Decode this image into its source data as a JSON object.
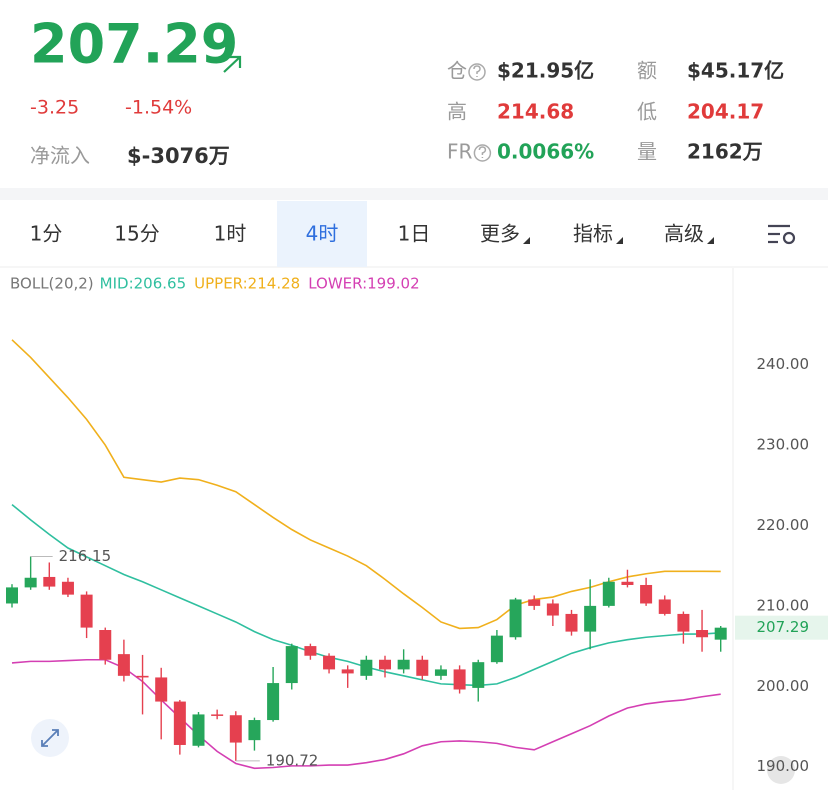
{
  "header": {
    "price": "207.29",
    "change": "-3.25",
    "change_pct": "-1.54%",
    "net_inflow_label": "净流入",
    "net_inflow": "$-3076万"
  },
  "stats": [
    {
      "label": "仓",
      "help": true,
      "value": "$21.95亿",
      "tone": "dark"
    },
    {
      "label": "额",
      "help": false,
      "value": "$45.17亿",
      "tone": "dark"
    },
    {
      "label": "高",
      "help": false,
      "value": "214.68",
      "tone": "red"
    },
    {
      "label": "低",
      "help": false,
      "value": "204.17",
      "tone": "red"
    },
    {
      "label": "FR",
      "help": true,
      "value": "0.0066%",
      "tone": "green"
    },
    {
      "label": "量",
      "help": false,
      "value": "2162万",
      "tone": "dark"
    }
  ],
  "tabs": {
    "items": [
      {
        "label": "1分",
        "dropdown": false
      },
      {
        "label": "15分",
        "dropdown": false
      },
      {
        "label": "1时",
        "dropdown": false
      },
      {
        "label": "4时",
        "dropdown": false
      },
      {
        "label": "1日",
        "dropdown": false
      },
      {
        "label": "更多",
        "dropdown": true
      },
      {
        "label": "指标",
        "dropdown": true
      },
      {
        "label": "高级",
        "dropdown": true
      }
    ],
    "active": 3
  },
  "chart_data": {
    "type": "candlestick",
    "legend_title": "BOLL(20,2)",
    "categories": [
      null,
      null,
      null,
      null,
      null,
      null,
      null,
      null,
      null,
      null,
      null,
      null,
      null,
      null,
      null,
      null,
      null,
      null,
      null,
      null,
      null,
      null,
      null,
      null,
      null,
      null,
      null,
      null,
      null,
      null,
      null,
      null,
      null,
      null,
      null,
      null,
      null,
      null,
      null
    ],
    "open": [
      210.3,
      212.3,
      213.6,
      213.0,
      211.4,
      207.0,
      204.0,
      201.3,
      201.1,
      198.1,
      192.6,
      196.5,
      196.4,
      193.3,
      195.8,
      200.4,
      205.0,
      203.8,
      202.1,
      201.3,
      203.3,
      202.1,
      203.3,
      201.3,
      202.1,
      199.8,
      203.0,
      206.1,
      210.8,
      210.3,
      209.0,
      206.8,
      210.0,
      213.0,
      212.6,
      210.8,
      209.0,
      207.0,
      205.8
    ],
    "high": [
      212.7,
      216.15,
      215.4,
      213.5,
      211.8,
      207.3,
      205.8,
      203.9,
      202.3,
      198.3,
      196.8,
      197.1,
      196.9,
      196.1,
      202.4,
      205.3,
      205.3,
      204.1,
      202.6,
      203.8,
      203.8,
      204.6,
      203.8,
      202.6,
      202.6,
      203.3,
      207.0,
      211.0,
      211.3,
      210.8,
      209.5,
      213.3,
      213.5,
      214.5,
      213.5,
      211.3,
      209.3,
      209.5,
      207.5
    ],
    "low": [
      209.8,
      212.0,
      212.0,
      211.1,
      206.0,
      202.7,
      200.6,
      196.5,
      193.4,
      191.5,
      192.4,
      195.9,
      190.72,
      192.0,
      195.6,
      199.6,
      203.3,
      201.6,
      199.8,
      200.8,
      201.1,
      201.6,
      200.8,
      200.8,
      199.1,
      198.1,
      202.8,
      205.8,
      209.5,
      207.5,
      206.3,
      204.6,
      209.8,
      212.3,
      210.0,
      208.8,
      205.3,
      204.3,
      204.3
    ],
    "close": [
      212.3,
      213.5,
      212.4,
      211.4,
      207.3,
      203.3,
      201.3,
      201.1,
      198.1,
      192.7,
      196.5,
      196.4,
      193.0,
      195.8,
      200.4,
      205.0,
      203.8,
      202.1,
      201.6,
      203.3,
      202.1,
      203.3,
      201.3,
      202.1,
      199.6,
      203.0,
      206.3,
      210.8,
      210.0,
      208.8,
      206.8,
      210.0,
      213.0,
      212.6,
      210.3,
      209.0,
      206.8,
      206.1,
      207.29
    ],
    "up_color": "#26a65b",
    "down_color": "#e5404f",
    "series": [
      {
        "legend": "MID:206.65",
        "color": "#2fbf9f",
        "values": [
          222.6,
          220.7,
          218.9,
          217.2,
          216.1,
          215.0,
          213.9,
          213.0,
          212.0,
          211.0,
          210.0,
          209.0,
          208.0,
          206.8,
          205.8,
          205.1,
          204.3,
          203.6,
          203.1,
          202.4,
          201.8,
          201.3,
          200.8,
          200.3,
          200.2,
          200.1,
          200.3,
          201.1,
          202.1,
          203.1,
          204.1,
          204.8,
          205.4,
          205.8,
          206.1,
          206.3,
          206.5,
          206.5,
          206.65
        ]
      },
      {
        "legend": "UPPER:214.28",
        "color": "#f0b01c",
        "values": [
          243.1,
          240.9,
          238.4,
          235.9,
          233.2,
          230.0,
          226.0,
          225.7,
          225.4,
          225.9,
          225.7,
          225.0,
          224.2,
          222.6,
          221.0,
          219.5,
          218.2,
          217.2,
          216.2,
          215.0,
          213.3,
          211.5,
          209.8,
          208.0,
          207.2,
          207.3,
          208.3,
          210.1,
          210.8,
          211.1,
          211.8,
          212.3,
          213.0,
          213.6,
          214.0,
          214.3,
          214.3,
          214.3,
          214.28
        ]
      },
      {
        "legend": "LOWER:199.02",
        "color": "#d43fb3",
        "values": [
          202.9,
          203.1,
          203.1,
          203.2,
          203.3,
          203.3,
          202.3,
          200.6,
          198.3,
          196.1,
          193.9,
          191.9,
          190.4,
          189.8,
          189.9,
          190.1,
          190.1,
          190.2,
          190.2,
          190.5,
          190.9,
          191.6,
          192.6,
          193.1,
          193.2,
          193.1,
          192.9,
          192.4,
          192.1,
          193.1,
          194.1,
          195.1,
          196.3,
          197.3,
          197.8,
          198.1,
          198.3,
          198.7,
          199.02
        ]
      }
    ],
    "ylim": [
      187.1,
      252.4
    ],
    "yticks": [
      {
        "value": 190,
        "label": "190.00"
      },
      {
        "value": 200,
        "label": "200.00"
      },
      {
        "value": 210,
        "label": "210.00"
      },
      {
        "value": 220,
        "label": "220.00"
      },
      {
        "value": 230,
        "label": "230.00"
      },
      {
        "value": 240,
        "label": "240.00"
      }
    ],
    "grid": false,
    "high_marker": 1,
    "low_marker": 12
  }
}
